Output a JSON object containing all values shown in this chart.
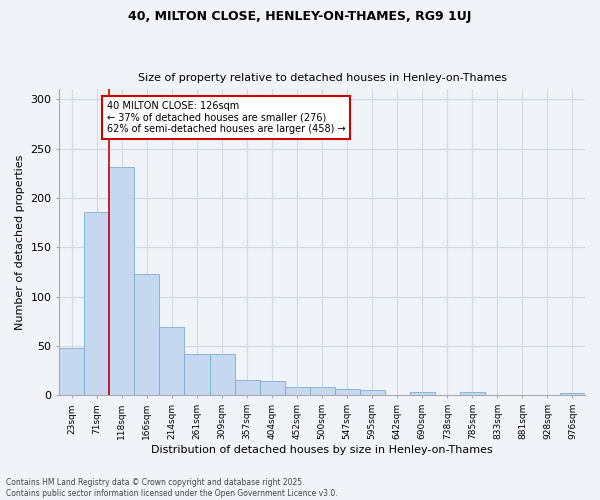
{
  "title1": "40, MILTON CLOSE, HENLEY-ON-THAMES, RG9 1UJ",
  "title2": "Size of property relative to detached houses in Henley-on-Thames",
  "xlabel": "Distribution of detached houses by size in Henley-on-Thames",
  "ylabel": "Number of detached properties",
  "categories": [
    "23sqm",
    "71sqm",
    "118sqm",
    "166sqm",
    "214sqm",
    "261sqm",
    "309sqm",
    "357sqm",
    "404sqm",
    "452sqm",
    "500sqm",
    "547sqm",
    "595sqm",
    "642sqm",
    "690sqm",
    "738sqm",
    "785sqm",
    "833sqm",
    "881sqm",
    "928sqm",
    "976sqm"
  ],
  "values": [
    48,
    186,
    231,
    123,
    69,
    42,
    42,
    16,
    15,
    9,
    9,
    7,
    5,
    0,
    3,
    0,
    3,
    0,
    0,
    0,
    2
  ],
  "bar_color": "#c5d8f0",
  "bar_edge_color": "#7badd4",
  "vline_color": "#cc0000",
  "vline_x": 2,
  "annotation_text": "40 MILTON CLOSE: 126sqm\n← 37% of detached houses are smaller (276)\n62% of semi-detached houses are larger (458) →",
  "annotation_box_color": "#ffffff",
  "annotation_box_edge": "#cc0000",
  "bg_color": "#f0f4f8",
  "grid_color": "#d0dae6",
  "footer1": "Contains HM Land Registry data © Crown copyright and database right 2025.",
  "footer2": "Contains public sector information licensed under the Open Government Licence v3.0.",
  "ylim": [
    0,
    310
  ],
  "yticks": [
    0,
    50,
    100,
    150,
    200,
    250,
    300
  ]
}
